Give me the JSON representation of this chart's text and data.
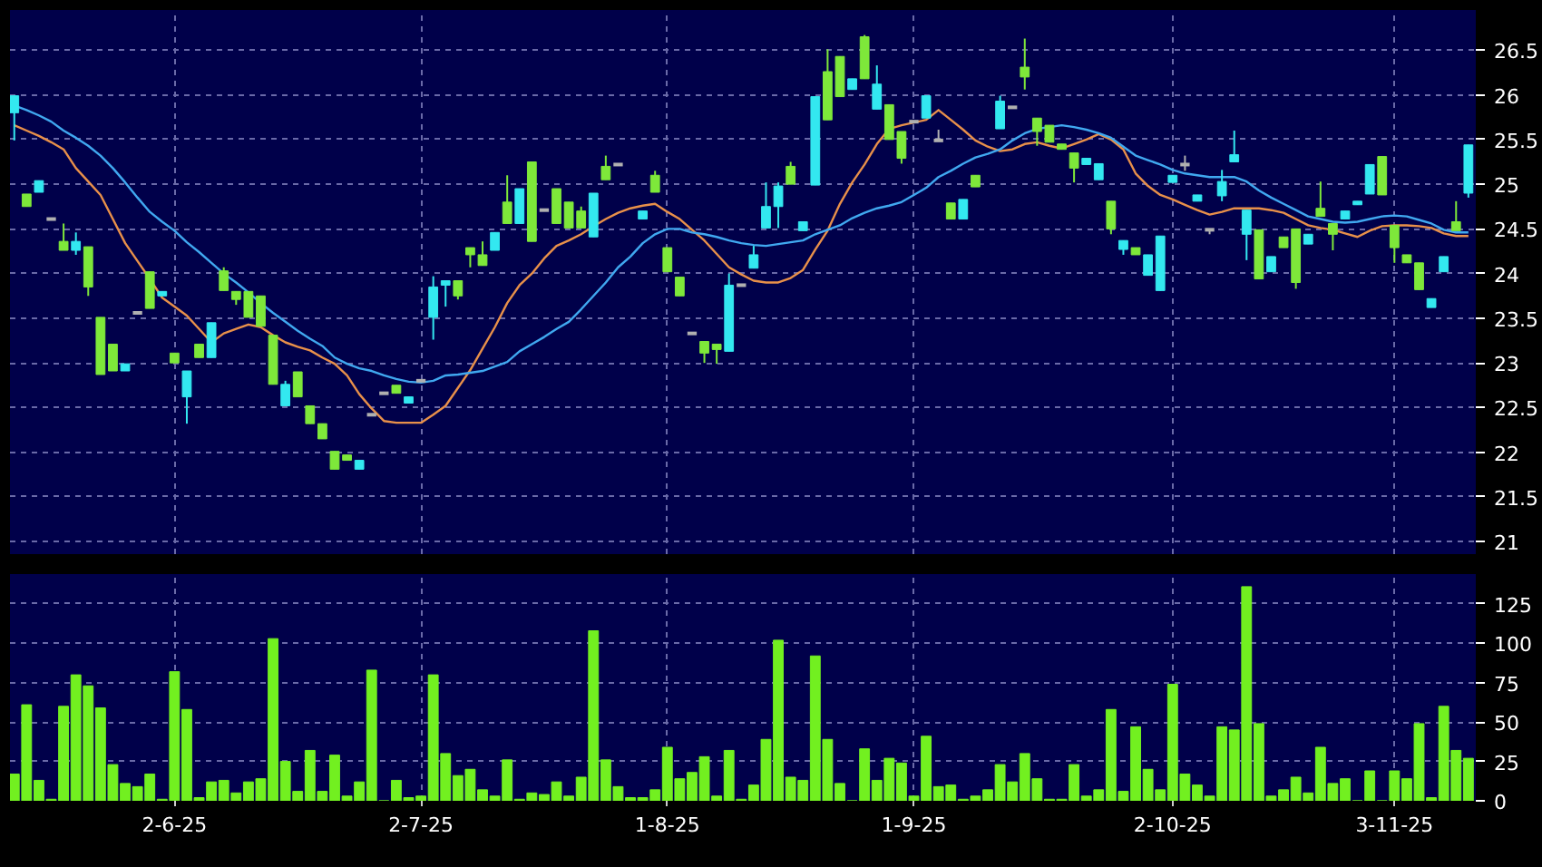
{
  "chart_data": [
    {
      "type": "candlestick",
      "categories": [
        null,
        null,
        null,
        null,
        null,
        null,
        null,
        null,
        null,
        null,
        null,
        null,
        null,
        null,
        null,
        null,
        null,
        null,
        null,
        null,
        null,
        null,
        null,
        null,
        null,
        null,
        null,
        null,
        null,
        null,
        null,
        null,
        null,
        null,
        null,
        null,
        null,
        null,
        null,
        null,
        null,
        null,
        null,
        null,
        null,
        null,
        null,
        null,
        null,
        null,
        null,
        null,
        null,
        null,
        null,
        null,
        null,
        null,
        null,
        null,
        null,
        null,
        null,
        null,
        null,
        null,
        null,
        null,
        null,
        null,
        null,
        null,
        null,
        null,
        null,
        null,
        null,
        null,
        null,
        null,
        null,
        null,
        null,
        null,
        null,
        null,
        null,
        null,
        null,
        null,
        null,
        null,
        null,
        null,
        null,
        null,
        null,
        null,
        null,
        null,
        null,
        null,
        null,
        null,
        null,
        null,
        null,
        null,
        null,
        null,
        null,
        null,
        null,
        null,
        null,
        null,
        null,
        null,
        null
      ],
      "ohlc": [
        [
          25.8,
          25.99,
          25.49,
          25.99
        ],
        [
          24.89,
          24.89,
          24.75,
          24.75
        ],
        [
          24.91,
          25.04,
          24.91,
          25.04
        ],
        [
          24.61,
          24.61,
          24.61,
          24.61
        ],
        [
          24.36,
          24.56,
          24.26,
          24.26
        ],
        [
          24.26,
          24.46,
          24.21,
          24.36
        ],
        [
          24.3,
          24.3,
          23.75,
          23.85
        ],
        [
          23.51,
          23.51,
          22.87,
          22.87
        ],
        [
          23.21,
          23.21,
          22.91,
          22.91
        ],
        [
          22.91,
          22.99,
          22.91,
          22.99
        ],
        [
          23.56,
          23.56,
          23.56,
          23.56
        ],
        [
          24.02,
          24.02,
          23.61,
          23.61
        ],
        [
          23.75,
          23.8,
          23.75,
          23.8
        ],
        [
          23.11,
          23.11,
          23.0,
          23.0
        ],
        [
          22.62,
          22.91,
          22.32,
          22.91
        ],
        [
          23.21,
          23.21,
          23.06,
          23.06
        ],
        [
          23.06,
          23.45,
          23.06,
          23.45
        ],
        [
          24.03,
          24.07,
          23.81,
          23.81
        ],
        [
          23.8,
          23.8,
          23.65,
          23.71
        ],
        [
          23.8,
          23.8,
          23.51,
          23.51
        ],
        [
          23.75,
          23.75,
          23.41,
          23.41
        ],
        [
          23.31,
          23.31,
          22.76,
          22.76
        ],
        [
          22.52,
          22.8,
          22.52,
          22.76
        ],
        [
          22.9,
          22.9,
          22.62,
          22.62
        ],
        [
          22.52,
          22.52,
          22.32,
          22.32
        ],
        [
          22.32,
          22.32,
          22.15,
          22.15
        ],
        [
          22.01,
          22.01,
          21.81,
          21.81
        ],
        [
          21.97,
          21.97,
          21.91,
          21.91
        ],
        [
          21.81,
          21.91,
          21.81,
          21.91
        ],
        [
          22.42,
          22.42,
          22.42,
          22.42
        ],
        [
          22.66,
          22.66,
          22.66,
          22.66
        ],
        [
          22.75,
          22.75,
          22.66,
          22.66
        ],
        [
          22.55,
          22.62,
          22.55,
          22.62
        ],
        [
          22.8,
          22.8,
          22.8,
          22.8
        ],
        [
          23.51,
          23.97,
          23.26,
          23.85
        ],
        [
          23.87,
          23.92,
          23.63,
          23.92
        ],
        [
          23.92,
          23.92,
          23.71,
          23.75
        ],
        [
          24.29,
          24.29,
          24.07,
          24.21
        ],
        [
          24.21,
          24.36,
          24.09,
          24.09
        ],
        [
          24.26,
          24.46,
          24.26,
          24.46
        ],
        [
          24.8,
          25.1,
          24.56,
          24.56
        ],
        [
          24.56,
          24.95,
          24.56,
          24.95
        ],
        [
          25.25,
          25.25,
          24.36,
          24.36
        ],
        [
          24.71,
          24.71,
          24.71,
          24.71
        ],
        [
          24.95,
          24.95,
          24.56,
          24.56
        ],
        [
          24.8,
          24.8,
          24.51,
          24.51
        ],
        [
          24.7,
          24.75,
          24.51,
          24.51
        ],
        [
          24.41,
          24.9,
          24.41,
          24.9
        ],
        [
          25.2,
          25.32,
          25.05,
          25.05
        ],
        [
          25.22,
          25.22,
          25.22,
          25.22
        ],
        null,
        [
          24.61,
          24.7,
          24.61,
          24.7
        ],
        [
          25.1,
          25.15,
          24.91,
          24.91
        ],
        [
          24.29,
          24.29,
          24.02,
          24.02
        ],
        [
          23.96,
          23.96,
          23.75,
          23.75
        ],
        [
          23.33,
          23.33,
          23.33,
          23.33
        ],
        [
          23.24,
          23.24,
          23.0,
          23.11
        ],
        [
          23.21,
          23.21,
          22.99,
          23.15
        ],
        [
          23.13,
          24.0,
          23.13,
          23.87
        ],
        [
          23.87,
          23.87,
          23.87,
          23.87
        ],
        [
          24.06,
          24.31,
          24.06,
          24.21
        ],
        [
          24.51,
          25.02,
          24.51,
          24.75
        ],
        [
          24.75,
          25.02,
          24.51,
          24.98
        ],
        [
          25.2,
          25.25,
          25.0,
          25.0
        ],
        [
          24.48,
          24.58,
          24.48,
          24.58
        ],
        [
          24.99,
          25.98,
          24.99,
          25.98
        ],
        [
          26.26,
          26.51,
          25.72,
          25.72
        ],
        [
          26.43,
          26.43,
          25.98,
          25.98
        ],
        [
          26.06,
          26.18,
          26.06,
          26.18
        ],
        [
          26.65,
          26.67,
          26.18,
          26.18
        ],
        [
          25.84,
          26.33,
          25.84,
          26.12
        ],
        [
          25.89,
          25.89,
          25.5,
          25.5
        ],
        [
          25.59,
          25.59,
          25.23,
          25.29
        ],
        [
          25.7,
          25.7,
          25.7,
          25.7
        ],
        [
          25.74,
          25.99,
          25.74,
          25.99
        ],
        [
          25.49,
          25.61,
          25.49,
          25.49
        ],
        [
          24.79,
          24.79,
          24.61,
          24.61
        ],
        [
          24.61,
          24.83,
          24.61,
          24.83
        ],
        [
          25.1,
          25.1,
          24.97,
          24.97
        ],
        null,
        [
          25.62,
          25.99,
          25.62,
          25.93
        ],
        [
          25.86,
          25.86,
          25.86,
          25.86
        ],
        [
          26.31,
          26.63,
          26.06,
          26.2
        ],
        [
          25.74,
          25.74,
          25.43,
          25.59
        ],
        [
          25.66,
          25.66,
          25.47,
          25.47
        ],
        [
          25.45,
          25.45,
          25.39,
          25.39
        ],
        [
          25.35,
          25.35,
          25.02,
          25.18
        ],
        [
          25.22,
          25.29,
          25.22,
          25.29
        ],
        [
          25.05,
          25.23,
          25.05,
          25.23
        ],
        [
          24.81,
          24.81,
          24.44,
          24.5
        ],
        [
          24.27,
          24.37,
          24.21,
          24.37
        ],
        [
          24.29,
          24.29,
          24.21,
          24.21
        ],
        [
          23.98,
          24.21,
          23.98,
          24.21
        ],
        [
          23.81,
          24.42,
          23.81,
          24.42
        ],
        [
          25.02,
          25.1,
          25.02,
          25.1
        ],
        [
          25.22,
          25.32,
          25.15,
          25.22
        ],
        [
          24.81,
          24.88,
          24.81,
          24.88
        ],
        [
          24.49,
          24.49,
          24.44,
          24.49
        ],
        [
          24.87,
          25.16,
          24.81,
          25.03
        ],
        [
          25.25,
          25.6,
          25.25,
          25.33
        ],
        [
          24.44,
          24.71,
          24.15,
          24.71
        ],
        [
          24.49,
          24.49,
          23.94,
          23.94
        ],
        [
          24.02,
          24.19,
          24.02,
          24.19
        ],
        [
          24.41,
          24.41,
          24.29,
          24.29
        ],
        [
          24.5,
          24.5,
          23.83,
          23.9
        ],
        [
          24.33,
          24.44,
          24.33,
          24.44
        ],
        [
          24.73,
          25.03,
          24.64,
          24.64
        ],
        [
          24.56,
          24.56,
          24.26,
          24.44
        ],
        [
          24.61,
          24.7,
          24.61,
          24.7
        ],
        [
          24.77,
          24.81,
          24.77,
          24.81
        ],
        [
          24.89,
          25.22,
          24.89,
          25.22
        ],
        [
          25.31,
          25.31,
          24.88,
          24.88
        ],
        [
          24.54,
          24.54,
          24.12,
          24.29
        ],
        [
          24.21,
          24.21,
          24.12,
          24.12
        ],
        [
          24.12,
          24.12,
          23.82,
          23.82
        ],
        [
          23.62,
          23.72,
          23.62,
          23.72
        ],
        [
          24.02,
          24.19,
          24.02,
          24.19
        ],
        [
          24.58,
          24.81,
          24.48,
          24.48
        ],
        [
          24.9,
          25.44,
          24.85,
          25.44
        ]
      ],
      "colors": [
        "#33e8f0",
        "#7ee83a",
        "#33e8f0",
        "#b0b0b0",
        "#7ee83a",
        "#33e8f0",
        "#7ee83a",
        "#7ee83a",
        "#7ee83a",
        "#33e8f0",
        "#b0b0b0",
        "#7ee83a",
        "#33e8f0",
        "#7ee83a",
        "#33e8f0",
        "#7ee83a",
        "#33e8f0",
        "#7ee83a",
        "#7ee83a",
        "#7ee83a",
        "#7ee83a",
        "#7ee83a",
        "#33e8f0",
        "#7ee83a",
        "#7ee83a",
        "#7ee83a",
        "#7ee83a",
        "#7ee83a",
        "#33e8f0",
        "#b0b0b0",
        "#b0b0b0",
        "#7ee83a",
        "#33e8f0",
        "#b0b0b0",
        "#33e8f0",
        "#33e8f0",
        "#7ee83a",
        "#7ee83a",
        "#7ee83a",
        "#33e8f0",
        "#7ee83a",
        "#33e8f0",
        "#7ee83a",
        "#b0b0b0",
        "#7ee83a",
        "#7ee83a",
        "#7ee83a",
        "#33e8f0",
        "#7ee83a",
        "#b0b0b0",
        null,
        "#33e8f0",
        "#7ee83a",
        "#7ee83a",
        "#7ee83a",
        "#b0b0b0",
        "#7ee83a",
        "#7ee83a",
        "#33e8f0",
        "#b0b0b0",
        "#33e8f0",
        "#33e8f0",
        "#33e8f0",
        "#7ee83a",
        "#33e8f0",
        "#33e8f0",
        "#7ee83a",
        "#7ee83a",
        "#33e8f0",
        "#7ee83a",
        "#33e8f0",
        "#7ee83a",
        "#7ee83a",
        "#b0b0b0",
        "#33e8f0",
        "#b0b0b0",
        "#7ee83a",
        "#33e8f0",
        "#7ee83a",
        null,
        "#33e8f0",
        "#b0b0b0",
        "#7ee83a",
        "#7ee83a",
        "#7ee83a",
        "#7ee83a",
        "#7ee83a",
        "#33e8f0",
        "#33e8f0",
        "#7ee83a",
        "#33e8f0",
        "#7ee83a",
        "#33e8f0",
        "#33e8f0",
        "#33e8f0",
        "#b0b0b0",
        "#33e8f0",
        "#b0b0b0",
        "#33e8f0",
        "#33e8f0",
        "#33e8f0",
        "#7ee83a",
        "#33e8f0",
        "#7ee83a",
        "#7ee83a",
        "#33e8f0",
        "#7ee83a",
        "#7ee83a",
        "#33e8f0",
        "#33e8f0",
        "#33e8f0",
        "#7ee83a",
        "#7ee83a",
        "#7ee83a",
        "#7ee83a",
        "#33e8f0",
        "#33e8f0",
        "#7ee83a",
        "#33e8f0"
      ],
      "series": [
        {
          "type": "line",
          "color": "#e8904a",
          "values": [
            25.66,
            25.6,
            25.54,
            25.47,
            25.39,
            25.18,
            25.03,
            24.88,
            24.61,
            24.34,
            24.14,
            23.94,
            23.73,
            23.63,
            23.53,
            23.38,
            23.23,
            23.33,
            23.38,
            23.43,
            23.4,
            23.31,
            23.23,
            23.18,
            23.14,
            23.06,
            22.99,
            22.86,
            22.65,
            22.49,
            22.35,
            22.33,
            22.33,
            22.33,
            22.42,
            22.52,
            22.72,
            22.92,
            23.16,
            23.4,
            23.67,
            23.87,
            24.0,
            24.17,
            24.31,
            24.37,
            24.44,
            24.53,
            24.61,
            24.68,
            24.73,
            24.76,
            24.78,
            24.69,
            24.61,
            24.49,
            24.37,
            24.22,
            24.07,
            23.99,
            23.92,
            23.9,
            23.9,
            23.95,
            24.04,
            24.27,
            24.48,
            24.78,
            25.02,
            25.22,
            25.45,
            25.62,
            25.66,
            25.69,
            25.72,
            25.83,
            25.72,
            25.61,
            25.49,
            25.42,
            25.37,
            25.39,
            25.45,
            25.47,
            25.43,
            25.4,
            25.45,
            25.5,
            25.56,
            25.5,
            25.39,
            25.12,
            24.98,
            24.88,
            24.83,
            24.77,
            24.71,
            24.66,
            24.69,
            24.73,
            24.73,
            24.73,
            24.71,
            24.68,
            24.61,
            24.54,
            24.51,
            24.49,
            24.45,
            24.41,
            24.48,
            24.53,
            24.54,
            24.54,
            24.53,
            24.51,
            24.45,
            24.42,
            24.42
          ]
        },
        {
          "type": "line",
          "color": "#40a8f0",
          "values": [
            25.88,
            25.83,
            25.77,
            25.7,
            25.6,
            25.52,
            25.43,
            25.32,
            25.18,
            25.02,
            24.85,
            24.69,
            24.58,
            24.48,
            24.35,
            24.24,
            24.12,
            24.0,
            23.9,
            23.79,
            23.67,
            23.56,
            23.46,
            23.36,
            23.27,
            23.19,
            23.06,
            22.99,
            22.94,
            22.91,
            22.86,
            22.82,
            22.79,
            22.78,
            22.8,
            22.86,
            22.87,
            22.89,
            22.91,
            22.96,
            23.01,
            23.13,
            23.21,
            23.29,
            23.38,
            23.46,
            23.6,
            23.75,
            23.9,
            24.07,
            24.19,
            24.34,
            24.44,
            24.5,
            24.5,
            24.46,
            24.44,
            24.41,
            24.37,
            24.34,
            24.32,
            24.31,
            24.33,
            24.35,
            24.37,
            24.44,
            24.49,
            24.54,
            24.62,
            24.68,
            24.73,
            24.76,
            24.8,
            24.88,
            24.96,
            25.08,
            25.15,
            25.23,
            25.3,
            25.34,
            25.39,
            25.49,
            25.57,
            25.62,
            25.64,
            25.66,
            25.64,
            25.61,
            25.57,
            25.52,
            25.42,
            25.32,
            25.27,
            25.22,
            25.16,
            25.12,
            25.1,
            25.08,
            25.08,
            25.08,
            25.03,
            24.93,
            24.85,
            24.78,
            24.71,
            24.64,
            24.61,
            24.58,
            24.57,
            24.58,
            24.61,
            24.64,
            24.65,
            24.64,
            24.6,
            24.56,
            24.49,
            24.46,
            24.46
          ]
        }
      ],
      "ylim": [
        20.86,
        26.95
      ],
      "yticks": [
        21,
        21.5,
        22,
        22.5,
        23,
        23.5,
        24,
        24.5,
        25,
        25.5,
        26,
        26.5
      ],
      "grid": true,
      "tick_labels": "y"
    },
    {
      "type": "bar",
      "categories": [
        null,
        null,
        null,
        null,
        null,
        null,
        null,
        null,
        null,
        null,
        null,
        null,
        null,
        "2-6-25",
        null,
        null,
        null,
        null,
        null,
        null,
        null,
        null,
        null,
        null,
        null,
        null,
        null,
        null,
        null,
        null,
        null,
        null,
        null,
        "2-7-25",
        null,
        null,
        null,
        null,
        null,
        null,
        null,
        null,
        null,
        null,
        null,
        null,
        null,
        null,
        null,
        null,
        null,
        null,
        null,
        "1-8-25",
        null,
        null,
        null,
        null,
        null,
        null,
        null,
        null,
        null,
        null,
        null,
        null,
        null,
        null,
        null,
        null,
        null,
        null,
        null,
        "1-9-25",
        null,
        null,
        null,
        null,
        null,
        null,
        null,
        null,
        null,
        null,
        null,
        null,
        null,
        null,
        null,
        null,
        null,
        null,
        null,
        null,
        "2-10-25",
        null,
        null,
        null,
        null,
        null,
        null,
        null,
        null,
        null,
        null,
        null,
        null,
        null,
        null,
        null,
        null,
        null,
        "3-11-25",
        null,
        null,
        null,
        null,
        null,
        null
      ],
      "values": [
        17,
        61,
        13,
        1,
        60,
        80,
        73,
        59,
        23,
        11,
        9,
        17,
        1,
        82,
        58,
        2,
        12,
        13,
        5,
        12,
        14,
        103,
        25,
        6,
        32,
        6,
        29,
        3,
        12,
        83,
        0,
        13,
        2,
        3,
        80,
        30,
        16,
        20,
        7,
        3,
        26,
        1,
        5,
        4,
        12,
        3,
        15,
        108,
        26,
        9,
        2,
        2,
        7,
        34,
        14,
        18,
        28,
        3,
        32,
        1,
        10,
        39,
        102,
        15,
        13,
        92,
        39,
        11,
        0,
        33,
        13,
        27,
        24,
        3,
        41,
        9,
        10,
        1,
        3,
        7,
        23,
        12,
        30,
        14,
        1,
        1,
        23,
        3,
        7,
        58,
        6,
        47,
        20,
        7,
        74,
        17,
        10,
        3,
        47,
        45,
        136,
        49,
        3,
        7,
        15,
        5,
        34,
        11,
        14,
        0,
        19,
        0,
        19,
        14,
        49,
        2,
        60,
        32,
        27
      ],
      "color": "#72f020",
      "ylim": [
        0,
        144
      ],
      "yticks": [
        0,
        25,
        50,
        75,
        100,
        125
      ],
      "grid": true
    }
  ]
}
